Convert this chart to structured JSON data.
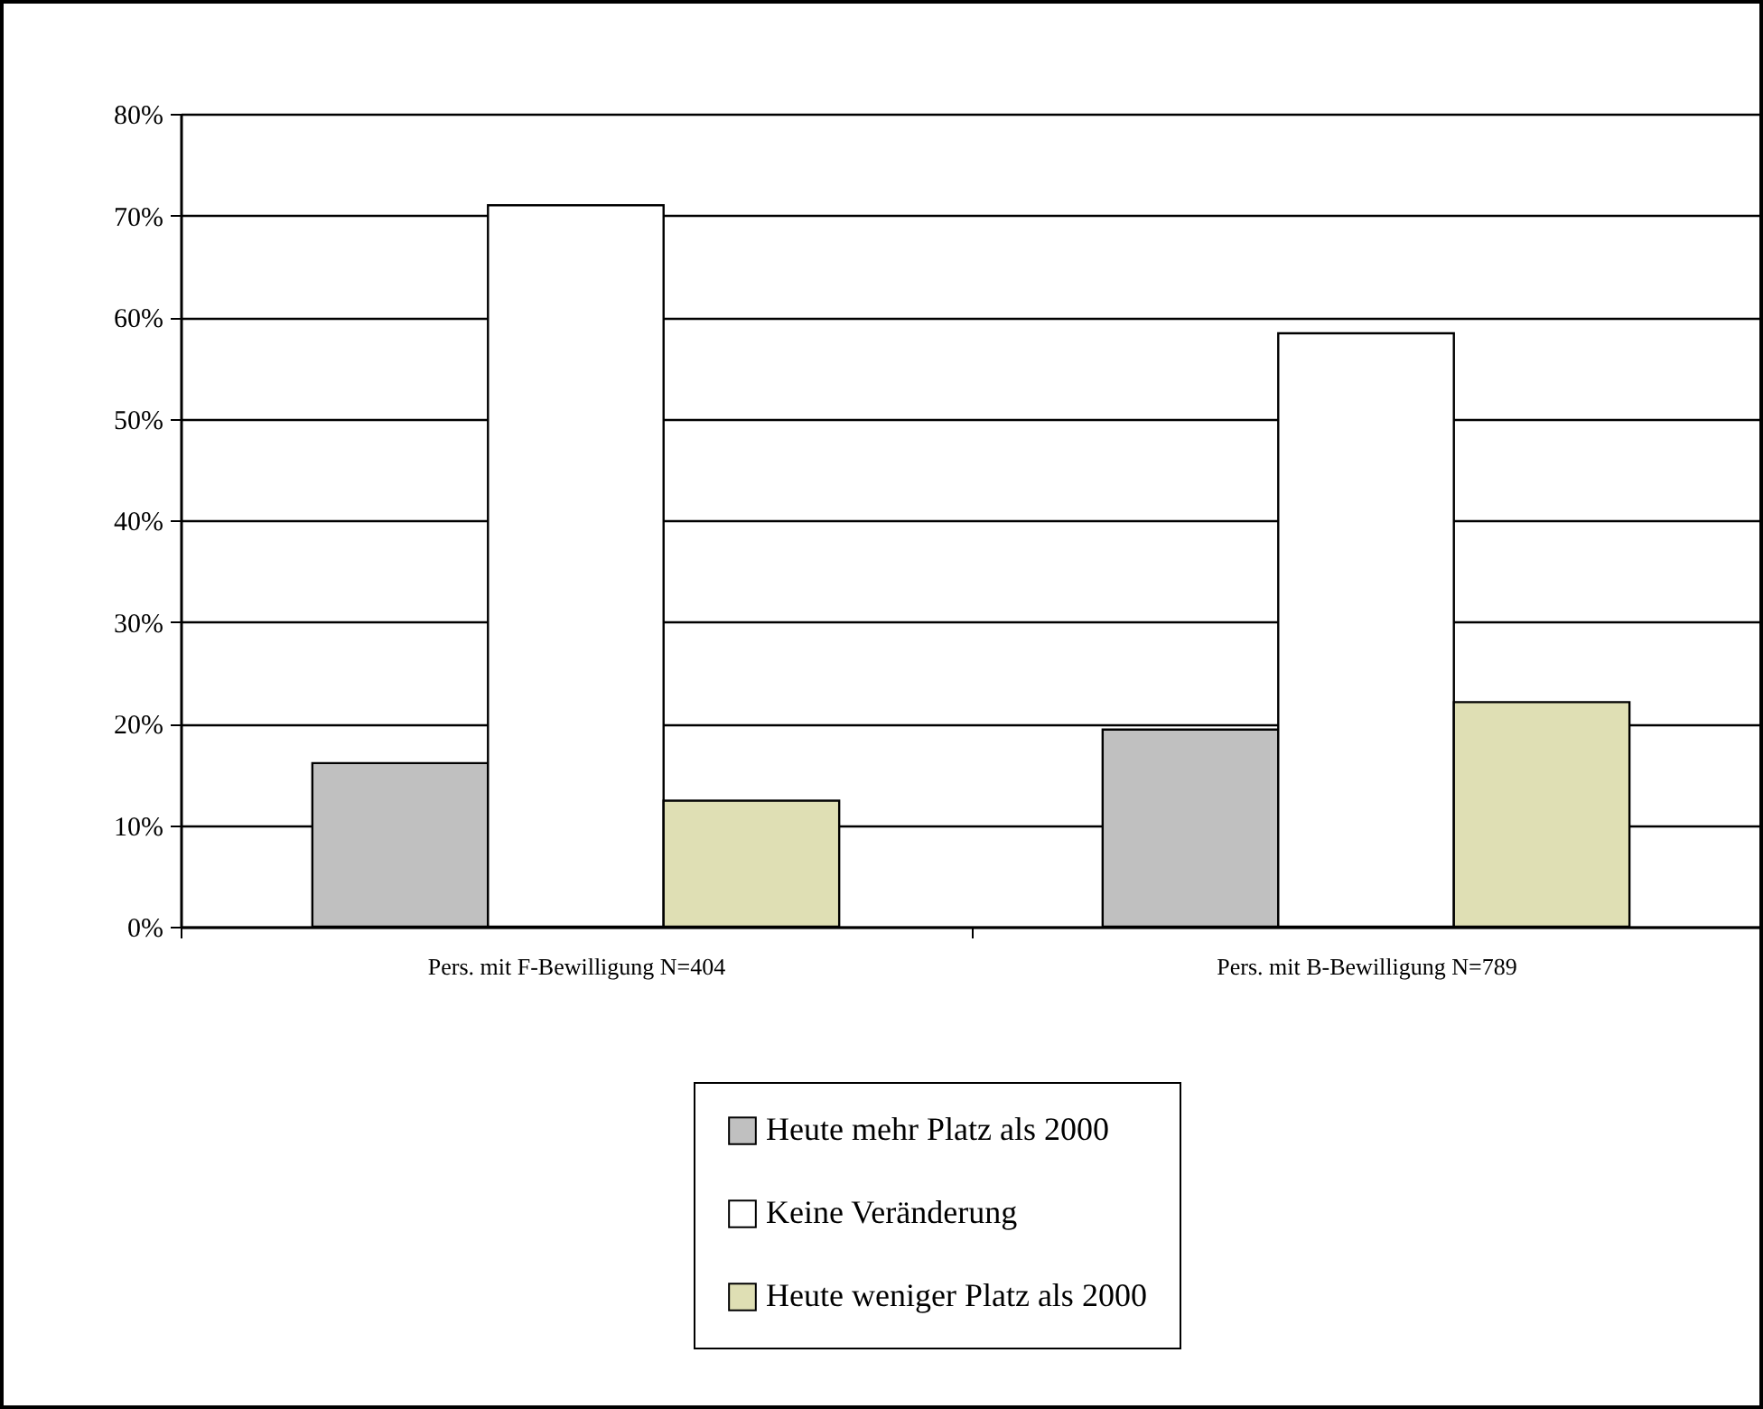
{
  "chart_data": {
    "type": "bar",
    "categories": [
      "Pers. mit F-Bewilligung N=404",
      "Pers. mit B-Bewilligung N=789"
    ],
    "series": [
      {
        "name": "Heute mehr Platz als 2000",
        "color": "#c0c0c0",
        "values": [
          16.1,
          19.4
        ]
      },
      {
        "name": "Keine Veränderung",
        "color": "#ffffff",
        "values": [
          71.0,
          58.4
        ]
      },
      {
        "name": "Heute weniger Platz als 2000",
        "color": "#dfdfb4",
        "values": [
          12.4,
          22.1
        ]
      }
    ],
    "ylim": [
      0,
      80
    ],
    "yticks": [
      {
        "value": 0,
        "label": "0%"
      },
      {
        "value": 10,
        "label": "10%"
      },
      {
        "value": 20,
        "label": "20%"
      },
      {
        "value": 30,
        "label": "30%"
      },
      {
        "value": 40,
        "label": "40%"
      },
      {
        "value": 50,
        "label": "50%"
      },
      {
        "value": 60,
        "label": "60%"
      },
      {
        "value": 70,
        "label": "70%"
      },
      {
        "value": 80,
        "label": "80%"
      }
    ],
    "grid": "y",
    "legend": "bottom"
  }
}
